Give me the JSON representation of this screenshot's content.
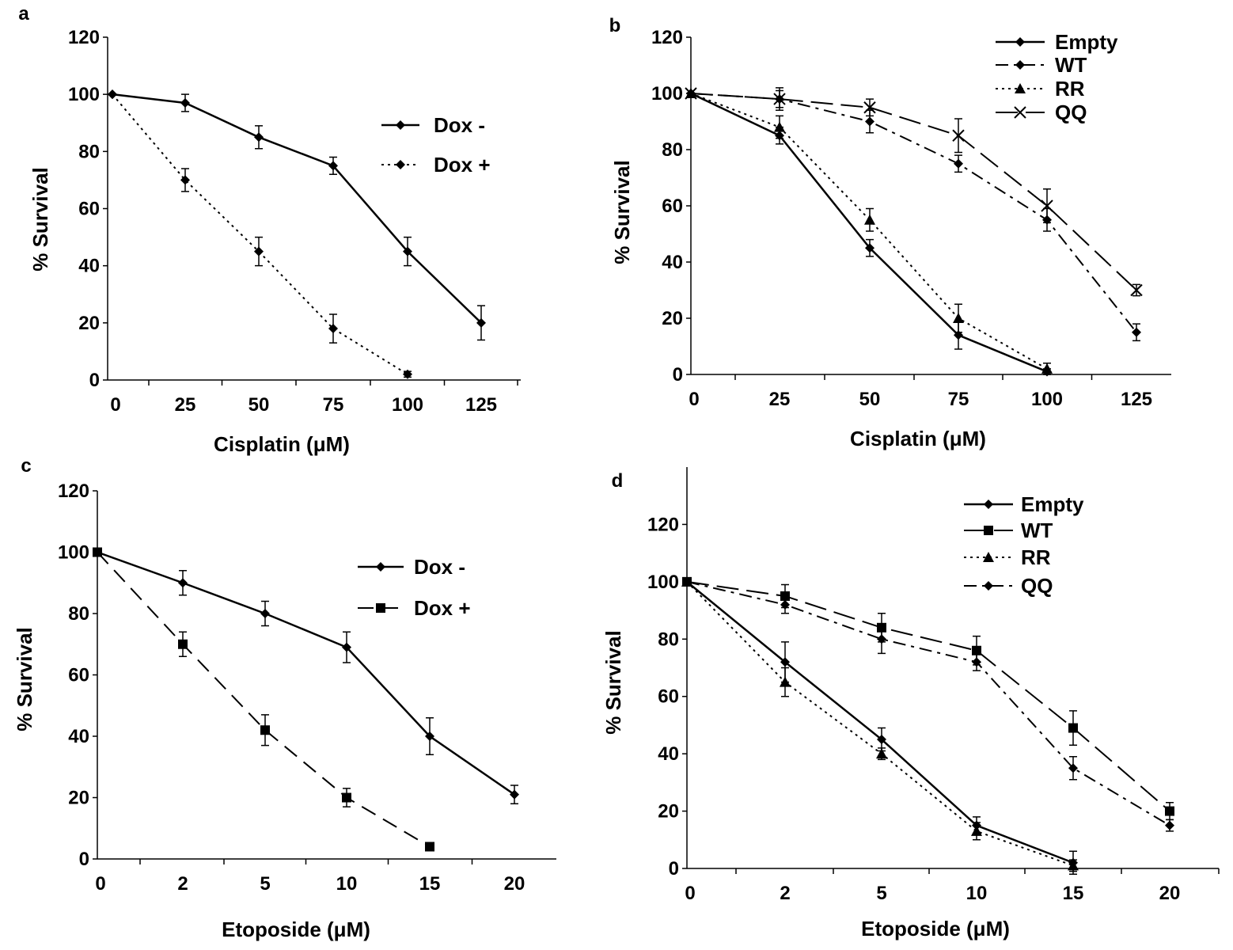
{
  "chart_data": [
    {
      "panel": "a",
      "type": "line",
      "xlabel": "Cisplatin (μM)",
      "ylabel": "% Survival",
      "categories": [
        "0",
        "25",
        "50",
        "75",
        "100",
        "125"
      ],
      "ylim": [
        0,
        120
      ],
      "yticks": [
        "0",
        "20",
        "40",
        "60",
        "80",
        "100",
        "120"
      ],
      "legend_position": "right",
      "series": [
        {
          "name": "Dox -",
          "values": [
            100,
            97,
            85,
            75,
            45,
            20
          ],
          "errors": [
            0,
            3,
            4,
            3,
            5,
            6
          ],
          "marker": "diamond",
          "line": "solid"
        },
        {
          "name": "Dox +",
          "values": [
            100,
            70,
            45,
            18,
            2,
            null
          ],
          "errors": [
            0,
            4,
            5,
            5,
            1,
            0
          ],
          "marker": "diamond",
          "line": "dotted"
        }
      ]
    },
    {
      "panel": "b",
      "type": "line",
      "xlabel": "Cisplatin (μM)",
      "ylabel": "% Survival",
      "categories": [
        "0",
        "25",
        "50",
        "75",
        "100",
        "125"
      ],
      "ylim": [
        0,
        120
      ],
      "yticks": [
        "0",
        "20",
        "40",
        "60",
        "80",
        "100",
        "120"
      ],
      "legend_position": "top-right",
      "series": [
        {
          "name": "Empty",
          "values": [
            100,
            85,
            45,
            14,
            1,
            null
          ],
          "errors": [
            0,
            3,
            3,
            5,
            1,
            0
          ],
          "marker": "diamond",
          "line": "solid"
        },
        {
          "name": "WT",
          "values": [
            100,
            98,
            90,
            75,
            55,
            15
          ],
          "errors": [
            0,
            3,
            4,
            3,
            4,
            3
          ],
          "marker": "diamond",
          "line": "dashdot"
        },
        {
          "name": "RR",
          "values": [
            100,
            88,
            55,
            20,
            2,
            null
          ],
          "errors": [
            0,
            4,
            4,
            5,
            2,
            0
          ],
          "marker": "triangle",
          "line": "dotted"
        },
        {
          "name": "QQ",
          "values": [
            100,
            98,
            95,
            85,
            60,
            30
          ],
          "errors": [
            0,
            4,
            3,
            6,
            6,
            2
          ],
          "marker": "cross",
          "line": "longdash"
        }
      ]
    },
    {
      "panel": "c",
      "type": "line",
      "xlabel": "Etoposide (μM)",
      "ylabel": "% Survival",
      "categories": [
        "0",
        "2",
        "5",
        "10",
        "15",
        "20"
      ],
      "ylim": [
        0,
        120
      ],
      "yticks": [
        "0",
        "20",
        "40",
        "60",
        "80",
        "100",
        "120"
      ],
      "legend_position": "right",
      "series": [
        {
          "name": "Dox -",
          "values": [
            100,
            90,
            80,
            69,
            40,
            21
          ],
          "errors": [
            0,
            4,
            4,
            5,
            6,
            3
          ],
          "marker": "diamond",
          "line": "solid"
        },
        {
          "name": "Dox +",
          "values": [
            100,
            70,
            42,
            20,
            4,
            null
          ],
          "errors": [
            0,
            4,
            5,
            3,
            1,
            0
          ],
          "marker": "square",
          "line": "dashed"
        }
      ]
    },
    {
      "panel": "d",
      "type": "line",
      "xlabel": "Etoposide (μM)",
      "ylabel": "% Survival",
      "categories": [
        "0",
        "2",
        "5",
        "10",
        "15",
        "20"
      ],
      "ylim": [
        0,
        140
      ],
      "yticks": [
        "0",
        "20",
        "40",
        "60",
        "80",
        "100",
        "120"
      ],
      "legend_position": "top-right",
      "series": [
        {
          "name": "Empty",
          "values": [
            100,
            72,
            45,
            15,
            2,
            null
          ],
          "errors": [
            0,
            7,
            4,
            3,
            4,
            0
          ],
          "marker": "diamond",
          "line": "solid"
        },
        {
          "name": "WT",
          "values": [
            100,
            95,
            84,
            76,
            49,
            20
          ],
          "errors": [
            0,
            4,
            5,
            5,
            6,
            3
          ],
          "marker": "square",
          "line": "longdash"
        },
        {
          "name": "RR",
          "values": [
            100,
            65,
            40,
            13,
            1,
            null
          ],
          "errors": [
            0,
            5,
            2,
            3,
            2,
            0
          ],
          "marker": "triangle",
          "line": "dotted"
        },
        {
          "name": "QQ",
          "values": [
            100,
            92,
            80,
            72,
            35,
            15
          ],
          "errors": [
            0,
            3,
            5,
            3,
            4,
            2
          ],
          "marker": "diamond",
          "line": "dashdot"
        }
      ]
    }
  ]
}
